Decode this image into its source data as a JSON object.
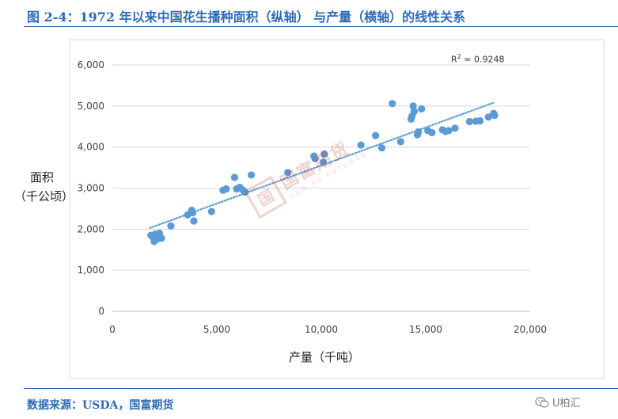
{
  "header": {
    "title": "图 2-4：1972 年以来中国花生播种面积（纵轴） 与产量（横轴）的线性关系"
  },
  "footer": {
    "source": "数据来源：USDA，国富期货",
    "wechat_label": "U柏汇"
  },
  "watermark": {
    "logo_char": "国",
    "cn": "国富期货",
    "en": "GUO FU FUTURES"
  },
  "colors": {
    "accent": "#2E6BB5",
    "points": "#5B9BD5",
    "gridline": "#D9D9D9",
    "watermark": "#c0392b"
  },
  "chart_data": {
    "type": "scatter",
    "title": "",
    "xlabel": "产量（千吨）",
    "ylabel_lines": [
      "面积",
      "（千公顷）"
    ],
    "xlim": [
      0,
      20000
    ],
    "ylim": [
      0,
      6000
    ],
    "xticks": [
      0,
      5000,
      10000,
      15000,
      20000
    ],
    "yticks": [
      0,
      1000,
      2000,
      3000,
      4000,
      5000,
      6000
    ],
    "xtick_labels": [
      "0",
      "5,000",
      "10,000",
      "15,000",
      "20,000"
    ],
    "ytick_labels": [
      "0",
      "1,000",
      "2,000",
      "3,000",
      "4,000",
      "5,000",
      "6,000"
    ],
    "grid": "horizontal",
    "legend": "none",
    "trendline": {
      "type": "linear",
      "style": "dotted",
      "x": [
        1800,
        18300
      ],
      "y": [
        2030,
        5090
      ],
      "r2_label": "R",
      "r2_sup": "2",
      "r2_value": " = 0.9248"
    },
    "points": [
      {
        "x": 1850,
        "y": 1850
      },
      {
        "x": 1950,
        "y": 1800
      },
      {
        "x": 2000,
        "y": 1700
      },
      {
        "x": 2050,
        "y": 1880
      },
      {
        "x": 2100,
        "y": 1830
      },
      {
        "x": 2150,
        "y": 1760
      },
      {
        "x": 2200,
        "y": 1850
      },
      {
        "x": 2250,
        "y": 1900
      },
      {
        "x": 2300,
        "y": 1800
      },
      {
        "x": 2350,
        "y": 1780
      },
      {
        "x": 2800,
        "y": 2080
      },
      {
        "x": 3600,
        "y": 2350
      },
      {
        "x": 3800,
        "y": 2460
      },
      {
        "x": 3850,
        "y": 2400
      },
      {
        "x": 3900,
        "y": 2200
      },
      {
        "x": 4750,
        "y": 2430
      },
      {
        "x": 5300,
        "y": 2950
      },
      {
        "x": 5450,
        "y": 2980
      },
      {
        "x": 5850,
        "y": 3260
      },
      {
        "x": 5950,
        "y": 2980
      },
      {
        "x": 6100,
        "y": 3020
      },
      {
        "x": 6250,
        "y": 2950
      },
      {
        "x": 6350,
        "y": 2900
      },
      {
        "x": 6650,
        "y": 3320
      },
      {
        "x": 8400,
        "y": 3380
      },
      {
        "x": 9650,
        "y": 3780
      },
      {
        "x": 9700,
        "y": 3720
      },
      {
        "x": 10100,
        "y": 3630
      },
      {
        "x": 10150,
        "y": 3830
      },
      {
        "x": 11900,
        "y": 4050
      },
      {
        "x": 12600,
        "y": 4280
      },
      {
        "x": 12900,
        "y": 3980
      },
      {
        "x": 13400,
        "y": 5060
      },
      {
        "x": 13800,
        "y": 4130
      },
      {
        "x": 14300,
        "y": 4680
      },
      {
        "x": 14350,
        "y": 4760
      },
      {
        "x": 14400,
        "y": 5000
      },
      {
        "x": 14450,
        "y": 4870
      },
      {
        "x": 14600,
        "y": 4300
      },
      {
        "x": 14650,
        "y": 4370
      },
      {
        "x": 14800,
        "y": 4930
      },
      {
        "x": 15100,
        "y": 4400
      },
      {
        "x": 15300,
        "y": 4350
      },
      {
        "x": 15800,
        "y": 4420
      },
      {
        "x": 15950,
        "y": 4380
      },
      {
        "x": 16100,
        "y": 4400
      },
      {
        "x": 16400,
        "y": 4460
      },
      {
        "x": 17100,
        "y": 4620
      },
      {
        "x": 17400,
        "y": 4630
      },
      {
        "x": 17600,
        "y": 4640
      },
      {
        "x": 18000,
        "y": 4730
      },
      {
        "x": 18250,
        "y": 4820
      },
      {
        "x": 18300,
        "y": 4770
      }
    ]
  }
}
